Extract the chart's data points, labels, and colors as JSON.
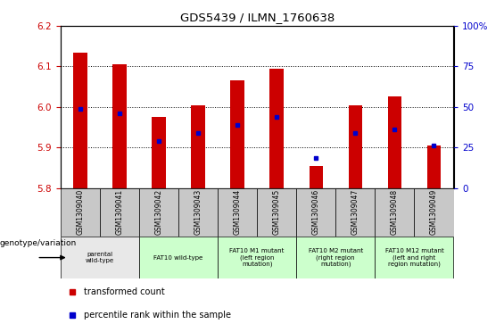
{
  "title": "GDS5439 / ILMN_1760638",
  "samples": [
    "GSM1309040",
    "GSM1309041",
    "GSM1309042",
    "GSM1309043",
    "GSM1309044",
    "GSM1309045",
    "GSM1309046",
    "GSM1309047",
    "GSM1309048",
    "GSM1309049"
  ],
  "bar_values": [
    6.135,
    6.105,
    5.975,
    6.005,
    6.065,
    6.095,
    5.855,
    6.005,
    6.025,
    5.905
  ],
  "percentile_values": [
    5.995,
    5.985,
    5.915,
    5.935,
    5.955,
    5.975,
    5.875,
    5.935,
    5.945,
    5.905
  ],
  "bar_bottom": 5.8,
  "ylim_left": [
    5.8,
    6.2
  ],
  "ylim_right": [
    0,
    100
  ],
  "yticks_left": [
    5.8,
    5.9,
    6.0,
    6.1,
    6.2
  ],
  "yticks_right": [
    0,
    25,
    50,
    75,
    100
  ],
  "ytick_labels_right": [
    "0",
    "25",
    "50",
    "75",
    "100%"
  ],
  "bar_color": "#CC0000",
  "blue_color": "#0000CC",
  "axis_color_left": "#CC0000",
  "axis_color_right": "#0000CC",
  "bg_color": "#FFFFFF",
  "plot_bg": "#FFFFFF",
  "sample_bg_color": "#C8C8C8",
  "groups": [
    {
      "start": 0,
      "end": 1,
      "label": "parental\nwild-type",
      "color": "#E8E8E8"
    },
    {
      "start": 2,
      "end": 3,
      "label": "FAT10 wild-type",
      "color": "#CCFFCC"
    },
    {
      "start": 4,
      "end": 5,
      "label": "FAT10 M1 mutant\n(left region\nmutation)",
      "color": "#CCFFCC"
    },
    {
      "start": 6,
      "end": 7,
      "label": "FAT10 M2 mutant\n(right region\nmutation)",
      "color": "#CCFFCC"
    },
    {
      "start": 8,
      "end": 9,
      "label": "FAT10 M12 mutant\n(left and right\nregion mutation)",
      "color": "#CCFFCC"
    }
  ],
  "xlabel_genotype": "genotype/variation",
  "legend_red": "transformed count",
  "legend_blue": "percentile rank within the sample",
  "bar_width": 0.35
}
